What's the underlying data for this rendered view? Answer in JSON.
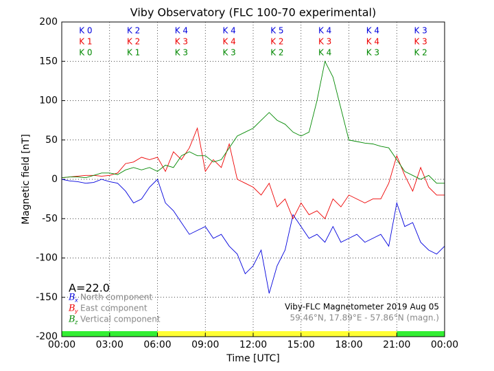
{
  "chart_data": {
    "type": "line",
    "title": "Viby Observatory (FLC 100-70 experimental)",
    "xlabel": "Time [UTC]",
    "ylabel": "Magnetic field [nT]",
    "xlim": [
      0,
      24
    ],
    "ylim": [
      -200,
      200
    ],
    "xticks": [
      {
        "value": 0,
        "label": "00:00"
      },
      {
        "value": 3,
        "label": "03:00"
      },
      {
        "value": 6,
        "label": "06:00"
      },
      {
        "value": 9,
        "label": "09:00"
      },
      {
        "value": 12,
        "label": "12:00"
      },
      {
        "value": 15,
        "label": "15:00"
      },
      {
        "value": 18,
        "label": "18:00"
      },
      {
        "value": 21,
        "label": "21:00"
      },
      {
        "value": 24,
        "label": "00:00"
      }
    ],
    "yticks": [
      -200,
      -150,
      -100,
      -50,
      0,
      50,
      100,
      150,
      200
    ],
    "grid": true,
    "x": [
      0,
      0.5,
      1,
      1.5,
      2,
      2.5,
      3,
      3.5,
      4,
      4.5,
      5,
      5.5,
      6,
      6.5,
      7,
      7.5,
      8,
      8.5,
      9,
      9.5,
      10,
      10.5,
      11,
      11.5,
      12,
      12.5,
      13,
      13.5,
      14,
      14.5,
      15,
      15.5,
      16,
      16.5,
      17,
      17.5,
      18,
      18.5,
      19,
      19.5,
      20,
      20.5,
      21,
      21.5,
      22,
      22.5,
      23,
      23.5,
      24
    ],
    "series": [
      {
        "name": "North component",
        "symbol": "B",
        "subscript": "x",
        "color": "#0000dd",
        "values": [
          0,
          -2,
          -3,
          -5,
          -4,
          0,
          -3,
          -5,
          -15,
          -30,
          -25,
          -10,
          0,
          -30,
          -40,
          -55,
          -70,
          -65,
          -60,
          -75,
          -70,
          -85,
          -95,
          -120,
          -110,
          -90,
          -145,
          -110,
          -90,
          -45,
          -60,
          -75,
          -70,
          -80,
          -60,
          -80,
          -75,
          -70,
          -80,
          -75,
          -70,
          -85,
          -30,
          -60,
          -55,
          -80,
          -90,
          -95,
          -85
        ]
      },
      {
        "name": "East component",
        "symbol": "B",
        "subscript": "y",
        "color": "#ee0000",
        "values": [
          2,
          3,
          4,
          5,
          5,
          4,
          5,
          8,
          20,
          22,
          28,
          25,
          28,
          10,
          35,
          25,
          40,
          65,
          10,
          25,
          15,
          45,
          0,
          -5,
          -10,
          -20,
          -5,
          -35,
          -25,
          -50,
          -30,
          -45,
          -40,
          -50,
          -25,
          -35,
          -20,
          -25,
          -30,
          -25,
          -25,
          -5,
          30,
          5,
          -15,
          15,
          -10,
          -20,
          -20
        ]
      },
      {
        "name": "Vertical component",
        "symbol": "B",
        "subscript": "z",
        "color": "#008800",
        "values": [
          2,
          3,
          3,
          2,
          5,
          8,
          8,
          6,
          12,
          15,
          12,
          15,
          10,
          18,
          15,
          30,
          35,
          30,
          30,
          22,
          25,
          40,
          55,
          60,
          65,
          75,
          85,
          75,
          70,
          60,
          55,
          60,
          100,
          150,
          130,
          90,
          50,
          48,
          46,
          45,
          42,
          40,
          25,
          10,
          5,
          0,
          5,
          -5,
          -5
        ]
      }
    ],
    "k_rows": [
      {
        "color": "#0000dd",
        "labels": [
          "K 0",
          "K 2",
          "K 4",
          "K 4",
          "K 5",
          "K 4",
          "K 4",
          "K 3"
        ]
      },
      {
        "color": "#ee0000",
        "labels": [
          "K 1",
          "K 2",
          "K 3",
          "K 4",
          "K 2",
          "K 3",
          "K 4",
          "K 3"
        ]
      },
      {
        "color": "#008800",
        "labels": [
          "K 0",
          "K 1",
          "K 3",
          "K 3",
          "K 2",
          "K 4",
          "K 3",
          "K 2"
        ]
      }
    ],
    "k_bins": [
      0,
      3,
      6,
      9,
      12,
      15,
      18,
      21,
      24
    ],
    "annotation": "A=22.0",
    "instrument": "Viby-FLC Magnetometer 2019 Aug 05",
    "location": "59.46°N, 17.89°E - 57.86°N (magn.)",
    "daylight_bar": [
      {
        "from": 0,
        "to": 6,
        "color": "#33ee33"
      },
      {
        "from": 6,
        "to": 21,
        "color": "#ffff33"
      },
      {
        "from": 21,
        "to": 24,
        "color": "#33ee33"
      }
    ]
  }
}
